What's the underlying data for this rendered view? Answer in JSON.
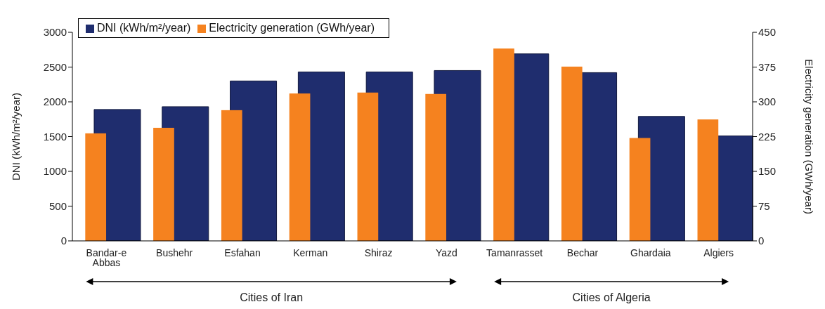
{
  "chart_data": {
    "type": "bar",
    "categories": [
      "Bandar-e Abbas",
      "Bushehr",
      "Esfahan",
      "Kerman",
      "Shiraz",
      "Yazd",
      "Tamanrasset",
      "Bechar",
      "Ghardaia",
      "Algiers"
    ],
    "series": [
      {
        "name": "DNI (kWh/m²/year)",
        "color": "#1f2d6e",
        "values": [
          1890,
          1930,
          2300,
          2430,
          2430,
          2450,
          2690,
          2420,
          1790,
          1510
        ]
      },
      {
        "name": "Electricity generation (GWh/year)",
        "color": "#f5821f",
        "axis": "y2",
        "values": [
          232,
          244,
          282,
          318,
          320,
          317,
          415,
          376,
          222,
          262
        ]
      }
    ],
    "ylabel": "DNI (kWh/m²/year)",
    "y2label": "Electricity generation (GWh/year)",
    "ylim": [
      0,
      3000
    ],
    "yticks": [
      0,
      500,
      1000,
      1500,
      2000,
      2500,
      3000
    ],
    "y2lim": [
      0,
      450
    ],
    "y2ticks": [
      0,
      75,
      150,
      225,
      300,
      375,
      450
    ],
    "annotations": [
      "Cities of Iran",
      "Cities of Algeria"
    ],
    "legend": "top left",
    "grid": false
  }
}
